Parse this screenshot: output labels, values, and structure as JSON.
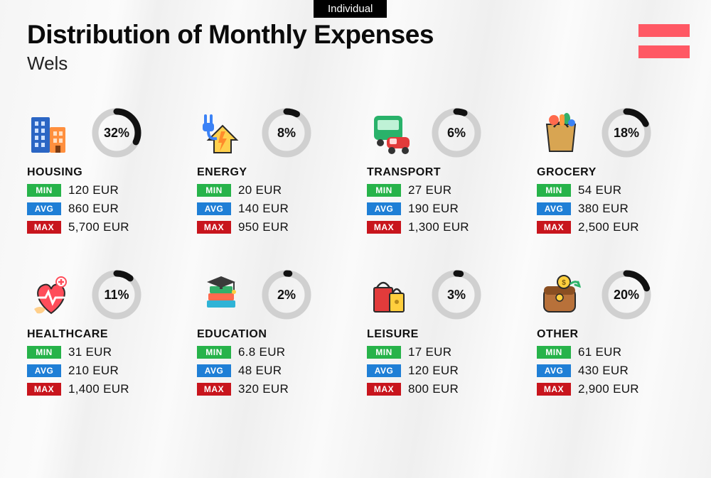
{
  "tag_label": "Individual",
  "title": "Distribution of Monthly Expenses",
  "city": "Wels",
  "currency": "EUR",
  "flag_colors": [
    "#ff5864",
    "#ff5864"
  ],
  "badge_labels": {
    "min": "MIN",
    "avg": "AVG",
    "max": "MAX"
  },
  "badge_colors": {
    "min": "#27b34a",
    "avg": "#1f7fd6",
    "max": "#c8151d"
  },
  "ring": {
    "radius": 30,
    "stroke_width": 9,
    "track_color": "#d0d0d0",
    "fill_color": "#111111"
  },
  "categories": [
    {
      "key": "housing",
      "name": "HOUSING",
      "percent": 32,
      "min": "120",
      "avg": "860",
      "max": "5,700"
    },
    {
      "key": "energy",
      "name": "ENERGY",
      "percent": 8,
      "min": "20",
      "avg": "140",
      "max": "950"
    },
    {
      "key": "transport",
      "name": "TRANSPORT",
      "percent": 6,
      "min": "27",
      "avg": "190",
      "max": "1,300"
    },
    {
      "key": "grocery",
      "name": "GROCERY",
      "percent": 18,
      "min": "54",
      "avg": "380",
      "max": "2,500"
    },
    {
      "key": "healthcare",
      "name": "HEALTHCARE",
      "percent": 11,
      "min": "31",
      "avg": "210",
      "max": "1,400"
    },
    {
      "key": "education",
      "name": "EDUCATION",
      "percent": 2,
      "min": "6.8",
      "avg": "48",
      "max": "320"
    },
    {
      "key": "leisure",
      "name": "LEISURE",
      "percent": 3,
      "min": "17",
      "avg": "120",
      "max": "800"
    },
    {
      "key": "other",
      "name": "OTHER",
      "percent": 20,
      "min": "61",
      "avg": "430",
      "max": "2,900"
    }
  ]
}
